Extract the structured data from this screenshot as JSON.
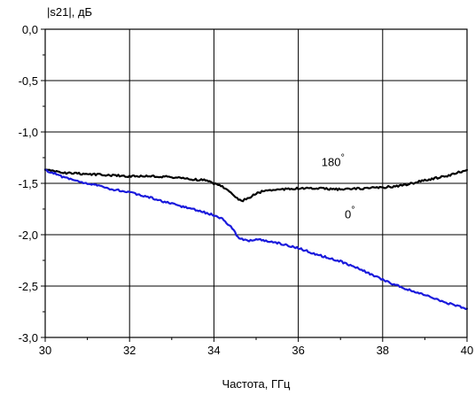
{
  "chart_data": {
    "type": "line",
    "title": "",
    "xlabel": "Частота, ГГц",
    "ylabel": "|s21|, дБ",
    "xlim": [
      30,
      40
    ],
    "ylim": [
      -3.0,
      0.0
    ],
    "x_ticks": [
      30,
      32,
      34,
      36,
      38,
      40
    ],
    "x_tick_labels": [
      "30",
      "32",
      "34",
      "36",
      "38",
      "40"
    ],
    "y_ticks": [
      0.0,
      -0.5,
      -1.0,
      -1.5,
      -2.0,
      -2.5,
      -3.0
    ],
    "y_tick_labels": [
      "0,0",
      "-0,5",
      "-1,0",
      "-1,5",
      "-2,0",
      "-2,5",
      "-3,0"
    ],
    "grid": true,
    "series": [
      {
        "name": "180°",
        "color": "#000000",
        "x": [
          30.0,
          30.5,
          31.0,
          31.5,
          32.0,
          32.5,
          33.0,
          33.5,
          33.8,
          34.0,
          34.2,
          34.4,
          34.55,
          34.65,
          34.8,
          35.0,
          35.2,
          35.5,
          36.0,
          36.5,
          37.0,
          37.5,
          38.0,
          38.5,
          39.0,
          39.5,
          40.0
        ],
        "y": [
          -1.37,
          -1.4,
          -1.41,
          -1.42,
          -1.43,
          -1.43,
          -1.44,
          -1.46,
          -1.47,
          -1.5,
          -1.53,
          -1.58,
          -1.65,
          -1.67,
          -1.65,
          -1.6,
          -1.57,
          -1.56,
          -1.55,
          -1.55,
          -1.56,
          -1.55,
          -1.54,
          -1.52,
          -1.47,
          -1.43,
          -1.37
        ]
      },
      {
        "name": "0°",
        "color": "#1a1adc",
        "x": [
          30.0,
          30.5,
          31.0,
          31.5,
          32.0,
          32.5,
          33.0,
          33.5,
          34.0,
          34.2,
          34.4,
          34.6,
          34.8,
          35.0,
          35.2,
          35.5,
          36.0,
          36.5,
          37.0,
          37.5,
          38.0,
          38.5,
          39.0,
          39.5,
          40.0
        ],
        "y": [
          -1.37,
          -1.45,
          -1.5,
          -1.55,
          -1.59,
          -1.64,
          -1.7,
          -1.75,
          -1.81,
          -1.85,
          -1.92,
          -2.04,
          -2.06,
          -2.04,
          -2.06,
          -2.08,
          -2.13,
          -2.2,
          -2.26,
          -2.34,
          -2.44,
          -2.52,
          -2.59,
          -2.66,
          -2.72
        ]
      }
    ],
    "annotations": [
      {
        "text": "180",
        "degree": "°",
        "x": 36.55,
        "y": -1.33
      },
      {
        "text": "0",
        "degree": "°",
        "x": 37.1,
        "y": -1.84
      }
    ]
  }
}
